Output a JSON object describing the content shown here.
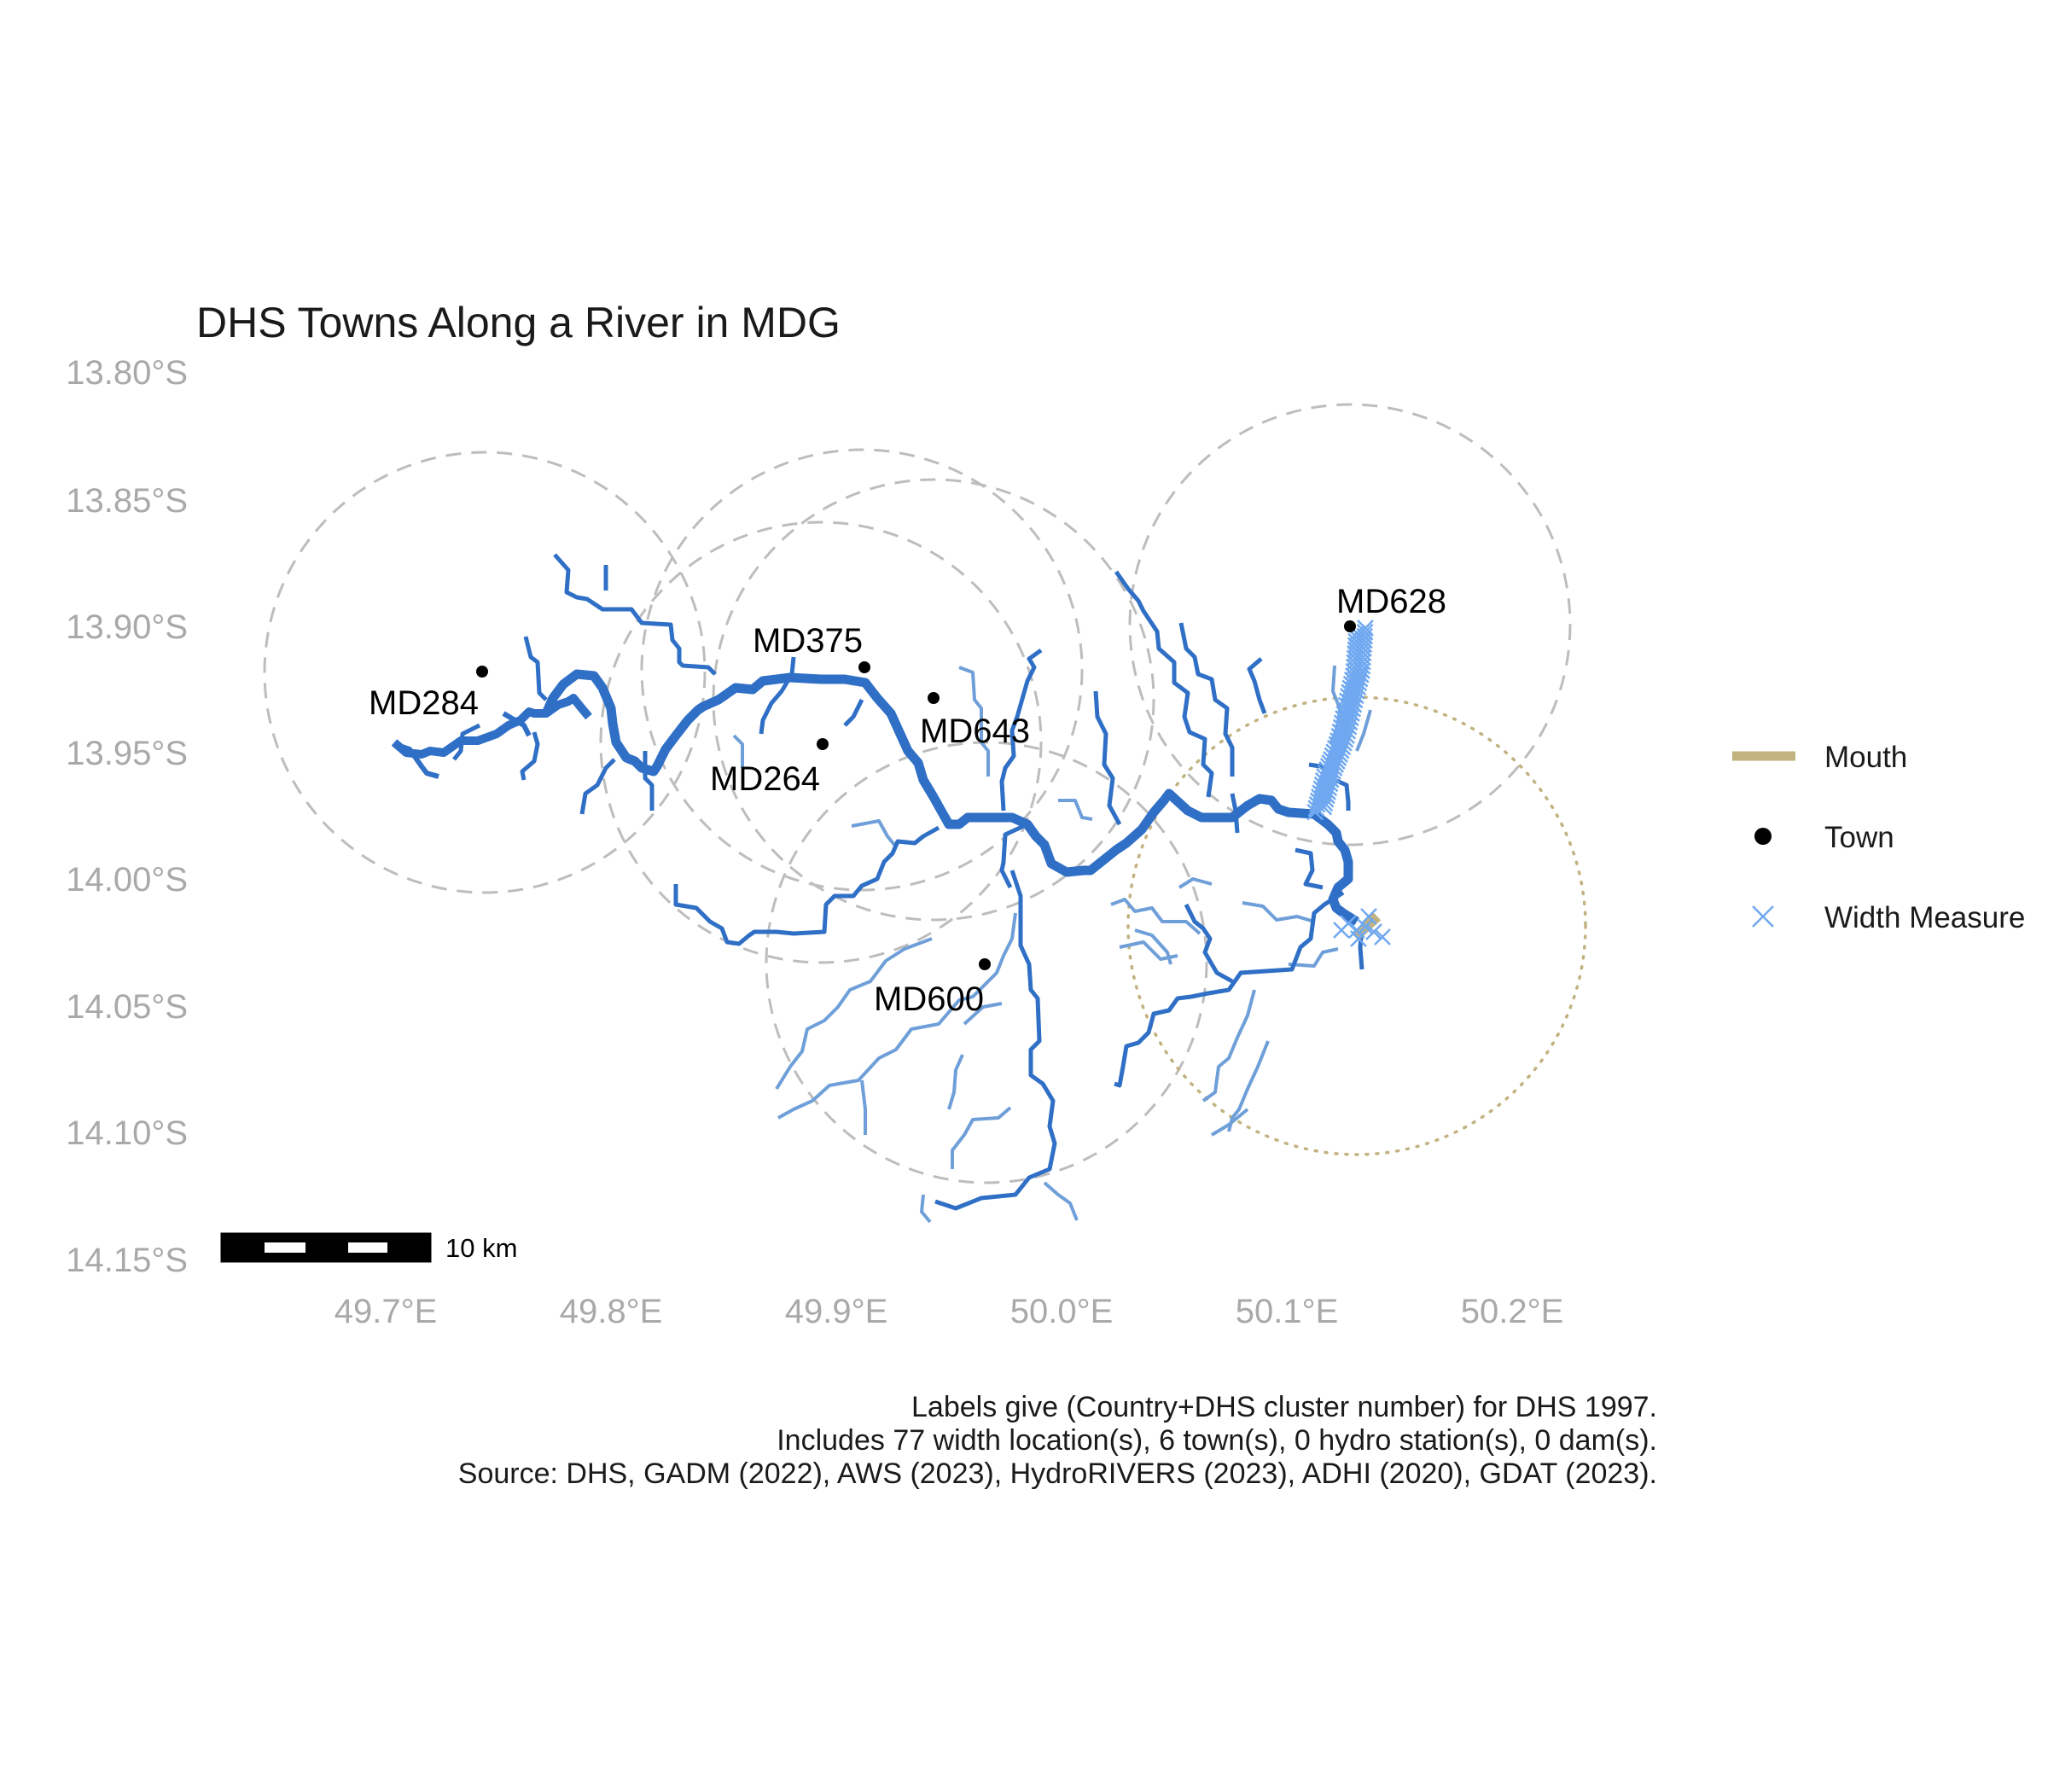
{
  "title": "DHS Towns Along a River in MDG",
  "colors": {
    "river_main": "#2f6fc6",
    "river_minor": "#6f9fd8",
    "town": "#000000",
    "mouth": "#c2b280",
    "width_measure": "#6fa8f0",
    "buffer": "#bdbdbd",
    "axis_text": "#a9a9a9"
  },
  "axes": {
    "y_ticks": [
      "13.80°S",
      "13.85°S",
      "13.90°S",
      "13.95°S",
      "14.00°S",
      "14.05°S",
      "14.10°S",
      "14.15°S"
    ],
    "x_ticks": [
      "49.7°E",
      "49.8°E",
      "49.9°E",
      "50.0°E",
      "50.1°E",
      "50.2°E"
    ],
    "xlim": [
      49.62,
      50.24
    ],
    "ylim": [
      -14.15,
      -13.8
    ]
  },
  "towns": [
    {
      "label": "MD284",
      "lon": 49.741,
      "lat": -13.918
    },
    {
      "label": "MD375",
      "lon": 49.913,
      "lat": -13.917
    },
    {
      "label": "MD643",
      "lon": 49.944,
      "lat": -13.929
    },
    {
      "label": "MD264",
      "lon": 49.894,
      "lat": -13.948
    },
    {
      "label": "MD600",
      "lon": 49.966,
      "lat": -14.035
    },
    {
      "label": "MD628",
      "lon": 50.128,
      "lat": -13.902
    }
  ],
  "legend": {
    "items": [
      {
        "label": "Mouth",
        "symbol": "thick-line-icon"
      },
      {
        "label": "Town",
        "symbol": "dot-icon"
      },
      {
        "label": "Width Measure",
        "symbol": "x-cross-icon"
      }
    ]
  },
  "scale_bar": {
    "label": "10 km"
  },
  "caption": {
    "line1": "Labels give (Country+DHS cluster number) for DHS 1997.",
    "line2": "Includes 77 width location(s), 6 town(s), 0 hydro station(s), 0 dam(s).",
    "line3": "Source: DHS, GADM (2022), AWS (2023), HydroRIVERS (2023), ADHI (2020), GDAT (2023)."
  }
}
